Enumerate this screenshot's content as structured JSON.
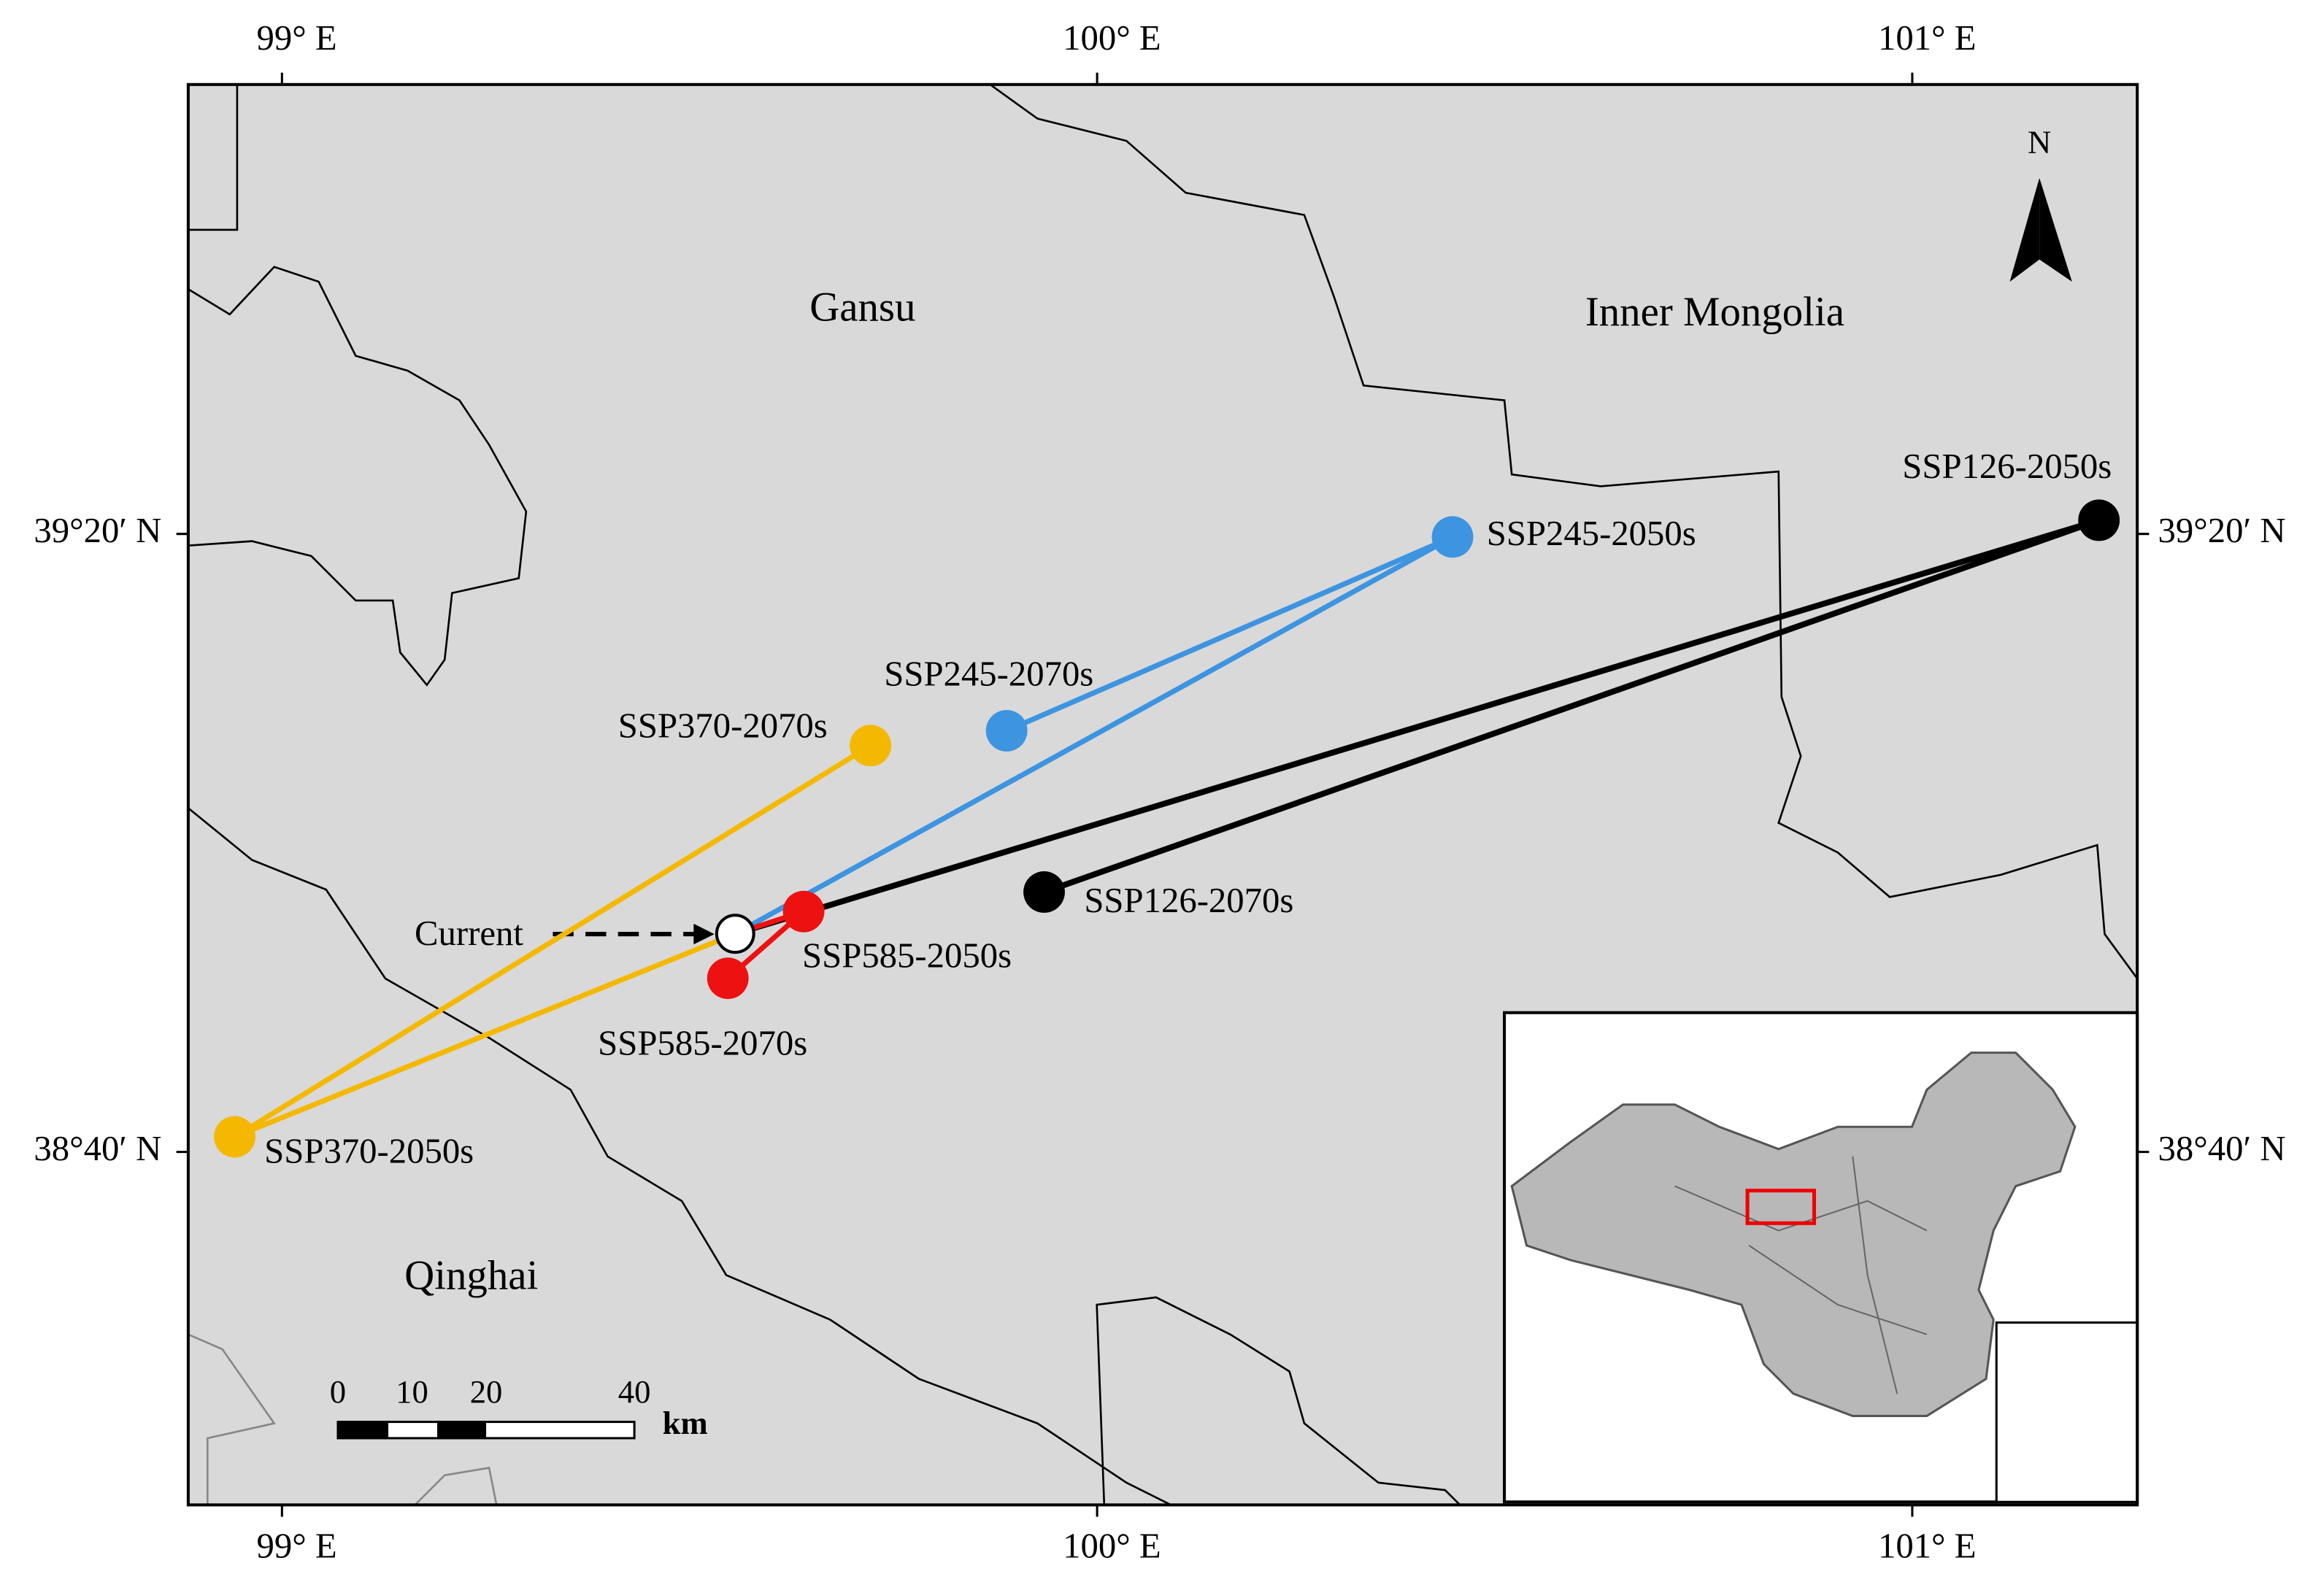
{
  "map": {
    "xlim": [
      98.885,
      101.276
    ],
    "ylim": [
      38.286,
      39.818
    ],
    "xticks": [
      {
        "value": 99,
        "label": "99° E"
      },
      {
        "value": 100,
        "label": "100° E"
      },
      {
        "value": 101,
        "label": "101° E"
      }
    ],
    "yticks": [
      {
        "value": 38.6667,
        "label": "38°40′ N"
      },
      {
        "value": 39.3333,
        "label": "39°20′ N"
      }
    ],
    "regions": [
      "Gansu",
      "Inner Mongolia",
      "Qinghai"
    ],
    "north": "N",
    "scale_bar": {
      "ticks": [
        0,
        10,
        20,
        40
      ],
      "unit": "km"
    },
    "points": [
      {
        "name": "Current",
        "lon": 99.556,
        "lat": 38.902,
        "color": "#ffffff"
      },
      {
        "name": "SSP245-2050s",
        "lon": 100.436,
        "lat": 39.33,
        "color": "#3d94e0"
      },
      {
        "name": "SSP245-2070s",
        "lon": 99.889,
        "lat": 39.121,
        "color": "#3d94e0"
      },
      {
        "name": "SSP370-2050s",
        "lon": 98.942,
        "lat": 38.683,
        "color": "#f5b800"
      },
      {
        "name": "SSP370-2070s",
        "lon": 99.722,
        "lat": 39.105,
        "color": "#f5b800"
      },
      {
        "name": "SSP126-2050s",
        "lon": 101.229,
        "lat": 39.348,
        "color": "#000000"
      },
      {
        "name": "SSP126-2070s",
        "lon": 99.935,
        "lat": 38.947,
        "color": "#000000"
      },
      {
        "name": "SSP585-2050s",
        "lon": 99.64,
        "lat": 38.926,
        "color": "#ee1111"
      },
      {
        "name": "SSP585-2070s",
        "lon": 99.547,
        "lat": 38.854,
        "color": "#ee1111"
      }
    ]
  }
}
